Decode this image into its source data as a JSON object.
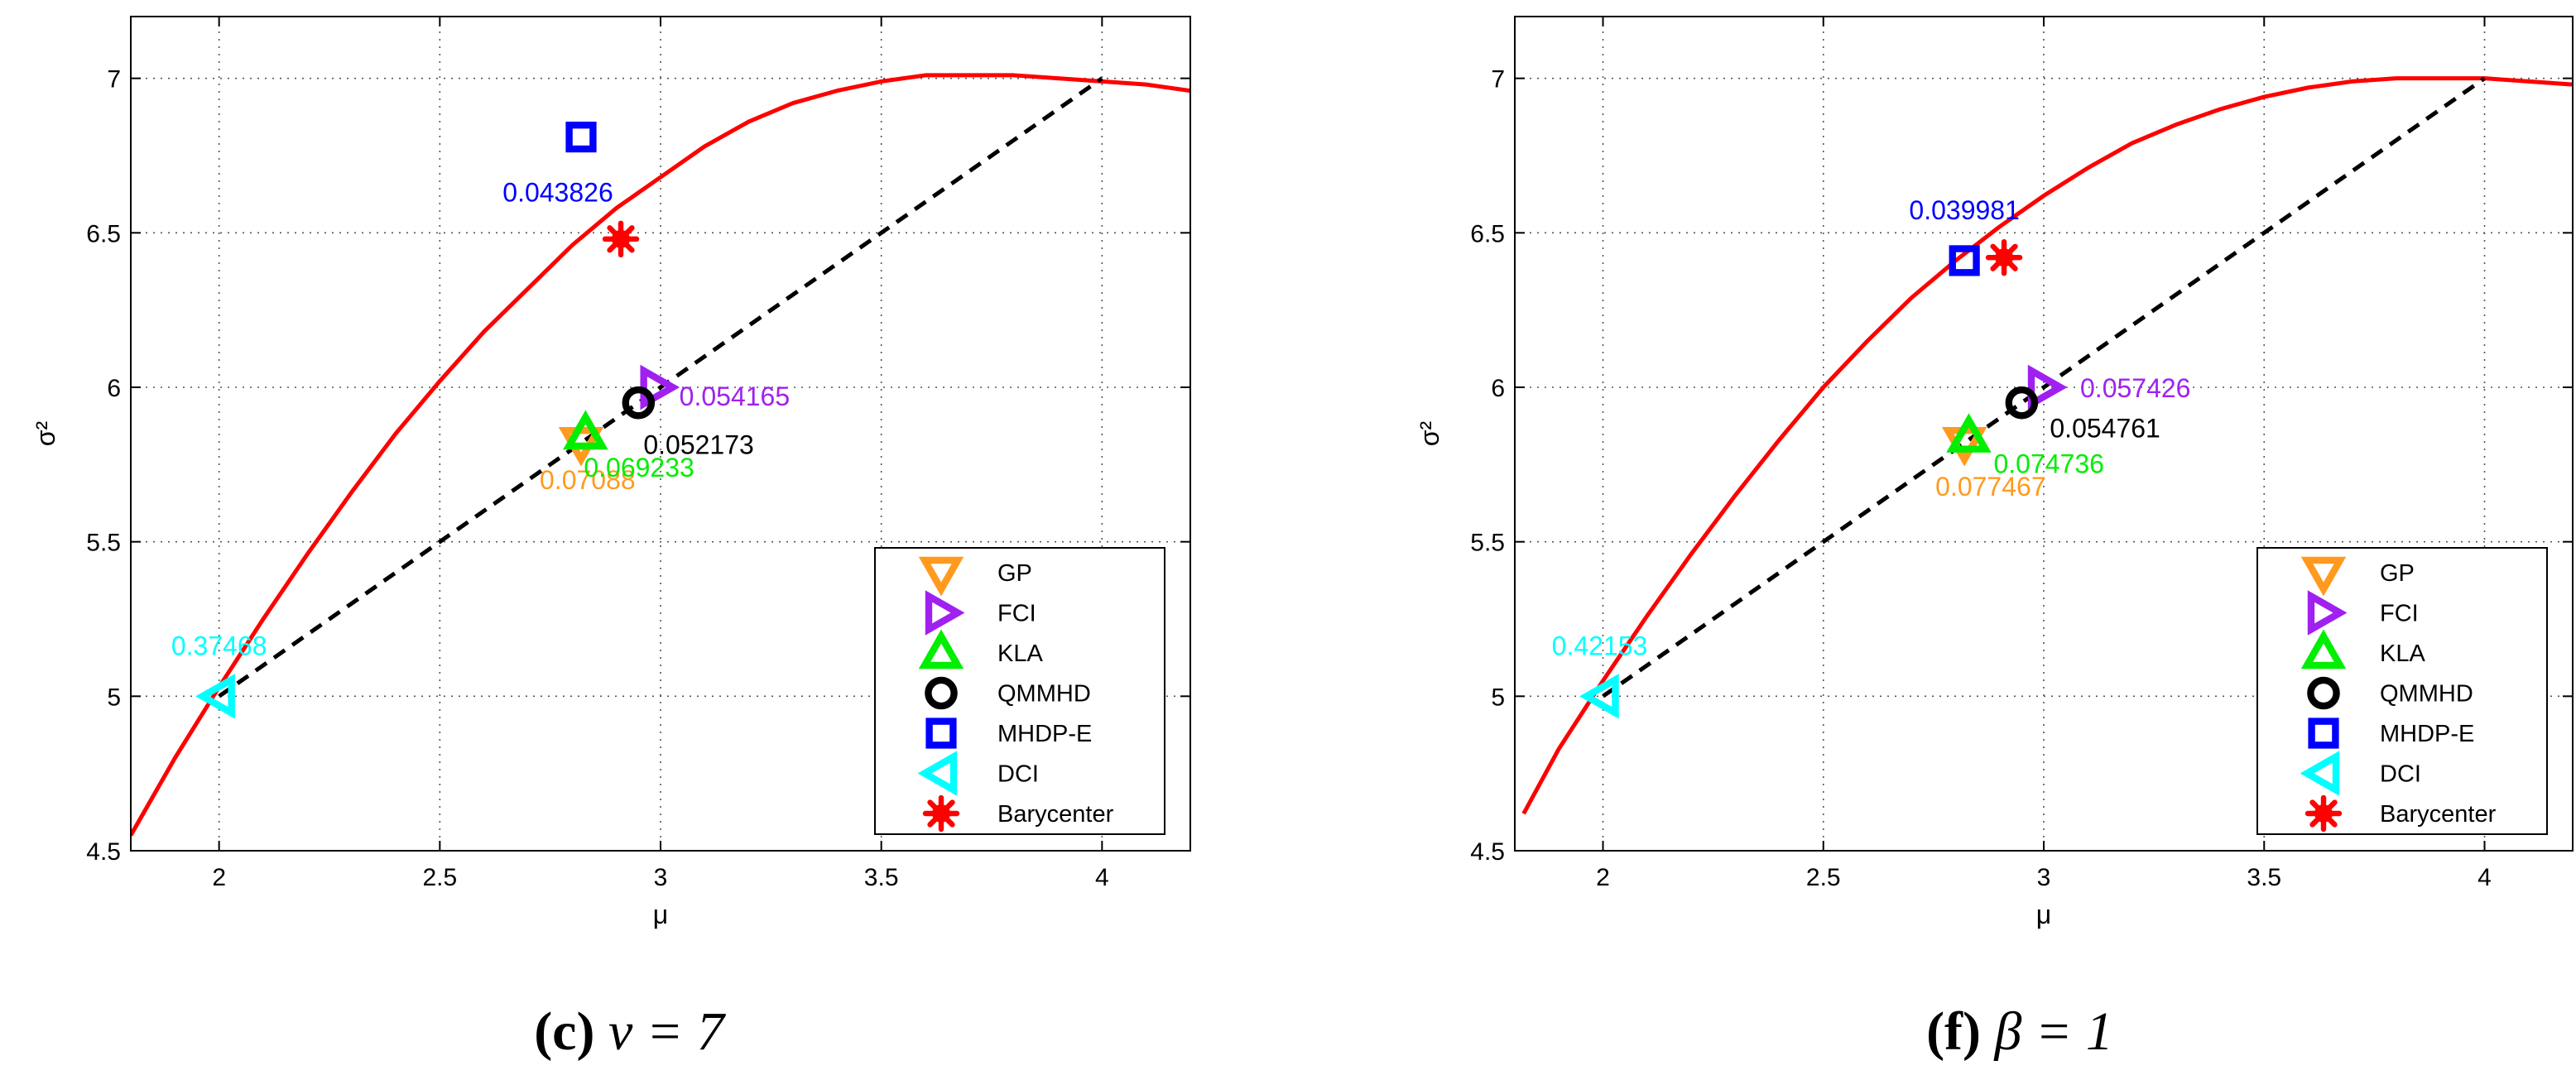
{
  "figure": {
    "panels": [
      {
        "caption_letter": "c",
        "caption_rest": "ν = 7"
      },
      {
        "caption_letter": "f",
        "caption_rest": "β = 1"
      }
    ]
  },
  "chart_data": [
    {
      "type": "scatter",
      "title": "",
      "xlabel": "μ",
      "ylabel": "σ²",
      "xlim": [
        1.8,
        4.2
      ],
      "ylim": [
        4.5,
        7.2
      ],
      "xticks": [
        2,
        2.5,
        3,
        3.5,
        4
      ],
      "xtick_labels": [
        "2",
        "2.5",
        "3",
        "3.5",
        "4"
      ],
      "yticks": [
        4.5,
        5,
        5.5,
        6,
        6.5,
        7
      ],
      "ytick_labels": [
        "4.5",
        "5",
        "5.5",
        "6",
        "6.5",
        "7"
      ],
      "grid": true,
      "legend_position": "lower-right",
      "curve": {
        "color": "#ff0000",
        "x": [
          1.8,
          1.9,
          2.0,
          2.1,
          2.2,
          2.3,
          2.4,
          2.5,
          2.6,
          2.7,
          2.8,
          2.9,
          3.0,
          3.1,
          3.2,
          3.3,
          3.4,
          3.5,
          3.6,
          3.7,
          3.8,
          3.9,
          4.0,
          4.1,
          4.2
        ],
        "y": [
          4.55,
          4.8,
          5.03,
          5.25,
          5.46,
          5.66,
          5.85,
          6.02,
          6.18,
          6.32,
          6.46,
          6.58,
          6.68,
          6.78,
          6.86,
          6.92,
          6.96,
          6.99,
          7.01,
          7.01,
          7.01,
          7.0,
          6.99,
          6.98,
          6.96
        ]
      },
      "segment": {
        "color": "#000000",
        "x": [
          2.0,
          4.0
        ],
        "y": [
          5.0,
          7.0
        ]
      },
      "series": [
        {
          "name": "GP",
          "marker": "triangle-down",
          "color": "#ff9a1f",
          "x": 2.82,
          "y": 5.82,
          "label": "0.07088",
          "label_anchor": "below"
        },
        {
          "name": "FCI",
          "marker": "triangle-right",
          "color": "#a020f0",
          "x": 2.99,
          "y": 6.0,
          "label": "0.054165",
          "label_anchor": "right"
        },
        {
          "name": "KLA",
          "marker": "triangle-up",
          "color": "#00ee00",
          "x": 2.83,
          "y": 5.85,
          "label": "0.069233",
          "label_anchor": "below-right"
        },
        {
          "name": "QMMHD",
          "marker": "circle",
          "color": "#000000",
          "x": 2.95,
          "y": 5.95,
          "label": "0.052173",
          "label_anchor": "below-right"
        },
        {
          "name": "MHDP-E",
          "marker": "square",
          "color": "#0000ff",
          "x": 2.82,
          "y": 6.81,
          "label": "0.043826",
          "label_anchor": "below"
        },
        {
          "name": "DCI",
          "marker": "triangle-left",
          "color": "#00ffff",
          "x": 2.0,
          "y": 5.0,
          "label": "0.37468",
          "label_anchor": "above"
        },
        {
          "name": "Barycenter",
          "marker": "asterisk",
          "color": "#ff0000",
          "x": 2.91,
          "y": 6.48,
          "label": "",
          "label_anchor": "none"
        }
      ]
    },
    {
      "type": "scatter",
      "title": "",
      "xlabel": "μ",
      "ylabel": "σ²",
      "xlim": [
        1.8,
        4.2
      ],
      "ylim": [
        4.5,
        7.2
      ],
      "xticks": [
        2,
        2.5,
        3,
        3.5,
        4
      ],
      "xtick_labels": [
        "2",
        "2.5",
        "3",
        "3.5",
        "4"
      ],
      "yticks": [
        4.5,
        5,
        5.5,
        6,
        6.5,
        7
      ],
      "ytick_labels": [
        "4.5",
        "5",
        "5.5",
        "6",
        "6.5",
        "7"
      ],
      "grid": true,
      "legend_position": "lower-right",
      "curve": {
        "color": "#ff0000",
        "x": [
          1.82,
          1.9,
          2.0,
          2.1,
          2.2,
          2.3,
          2.4,
          2.5,
          2.6,
          2.7,
          2.8,
          2.9,
          3.0,
          3.1,
          3.2,
          3.3,
          3.4,
          3.5,
          3.6,
          3.7,
          3.8,
          3.9,
          4.0,
          4.1,
          4.2
        ],
        "y": [
          4.62,
          4.83,
          5.05,
          5.26,
          5.46,
          5.65,
          5.83,
          6.0,
          6.15,
          6.29,
          6.41,
          6.52,
          6.62,
          6.71,
          6.79,
          6.85,
          6.9,
          6.94,
          6.97,
          6.99,
          7.0,
          7.0,
          7.0,
          6.99,
          6.98
        ]
      },
      "segment": {
        "color": "#000000",
        "x": [
          2.0,
          4.0
        ],
        "y": [
          5.0,
          7.0
        ]
      },
      "series": [
        {
          "name": "GP",
          "marker": "triangle-down",
          "color": "#ff9a1f",
          "x": 2.82,
          "y": 5.82,
          "label": "0.077467",
          "label_anchor": "below"
        },
        {
          "name": "FCI",
          "marker": "triangle-right",
          "color": "#a020f0",
          "x": 3.0,
          "y": 6.0,
          "label": "0.057426",
          "label_anchor": "right"
        },
        {
          "name": "KLA",
          "marker": "triangle-up",
          "color": "#00ee00",
          "x": 2.83,
          "y": 5.84,
          "label": "0.074736",
          "label_anchor": "below-right"
        },
        {
          "name": "QMMHD",
          "marker": "circle",
          "color": "#000000",
          "x": 2.95,
          "y": 5.95,
          "label": "0.054761",
          "label_anchor": "below-right"
        },
        {
          "name": "MHDP-E",
          "marker": "square",
          "color": "#0000ff",
          "x": 2.82,
          "y": 6.41,
          "label": "0.039981",
          "label_anchor": "above"
        },
        {
          "name": "DCI",
          "marker": "triangle-left",
          "color": "#00ffff",
          "x": 2.0,
          "y": 5.0,
          "label": "0.42153",
          "label_anchor": "above"
        },
        {
          "name": "Barycenter",
          "marker": "asterisk",
          "color": "#ff0000",
          "x": 2.91,
          "y": 6.42,
          "label": "",
          "label_anchor": "none"
        }
      ]
    }
  ]
}
